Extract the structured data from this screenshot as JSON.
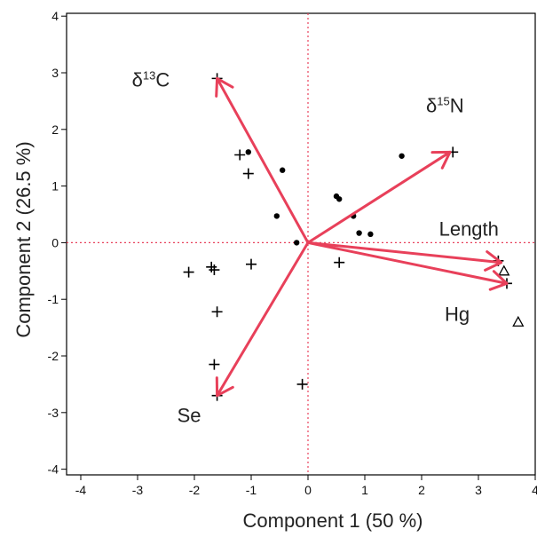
{
  "chart_data": {
    "type": "scatter",
    "xlabel": "Component 1  (50 %)",
    "ylabel": "Component 2  (26.5 %)",
    "xlim": [
      -4.25,
      4.0
    ],
    "ylim": [
      -4.1,
      4.05
    ],
    "xticks": [
      "-4",
      "-3",
      "-2",
      "-1",
      "0",
      "1",
      "2",
      "3",
      "4"
    ],
    "yticks": [
      "-4",
      "-3",
      "-2",
      "-1",
      "0",
      "1",
      "2",
      "3",
      "4"
    ],
    "grid": false,
    "reference_lines": {
      "x": 0,
      "y": 0,
      "color": "#e8405a",
      "style": "dotted"
    },
    "vector_color": "#e8405a",
    "vectors": [
      {
        "label": "δ13C",
        "label_main": "δ",
        "label_sup": "13",
        "label_tail": "C",
        "x": -1.6,
        "y": 2.9
      },
      {
        "label": "δ15N",
        "label_main": "δ",
        "label_sup": "15",
        "label_tail": "N",
        "x": 2.5,
        "y": 1.6
      },
      {
        "label": "Length",
        "label_main": "Length",
        "label_sup": "",
        "label_tail": "",
        "x": 3.4,
        "y": -0.35
      },
      {
        "label": "Hg",
        "label_main": "Hg",
        "label_sup": "",
        "label_tail": "",
        "x": 3.5,
        "y": -0.72
      },
      {
        "label": "Se",
        "label_main": "Se",
        "label_sup": "",
        "label_tail": "",
        "x": -1.6,
        "y": -2.7
      }
    ],
    "series": [
      {
        "marker": "dot",
        "points": [
          [
            -1.05,
            1.6
          ],
          [
            -0.45,
            1.28
          ],
          [
            -0.55,
            0.47
          ],
          [
            -0.2,
            0.0
          ],
          [
            0.5,
            0.82
          ],
          [
            0.55,
            0.77
          ],
          [
            0.8,
            0.47
          ],
          [
            0.9,
            0.17
          ],
          [
            1.1,
            0.15
          ],
          [
            1.65,
            1.53
          ]
        ]
      },
      {
        "marker": "plus",
        "points": [
          [
            -1.6,
            2.9
          ],
          [
            -1.2,
            1.55
          ],
          [
            -1.05,
            1.22
          ],
          [
            -2.1,
            -0.52
          ],
          [
            -1.7,
            -0.43
          ],
          [
            -1.65,
            -0.48
          ],
          [
            -1.0,
            -0.38
          ],
          [
            -1.6,
            -1.22
          ],
          [
            -1.65,
            -2.15
          ],
          [
            -1.6,
            -2.7
          ],
          [
            -0.1,
            -2.5
          ],
          [
            0.55,
            -0.35
          ],
          [
            2.55,
            1.6
          ],
          [
            3.35,
            -0.32
          ],
          [
            3.5,
            -0.72
          ]
        ]
      },
      {
        "marker": "triangle",
        "points": [
          [
            3.45,
            -0.5
          ],
          [
            3.7,
            -1.4
          ]
        ]
      }
    ]
  }
}
